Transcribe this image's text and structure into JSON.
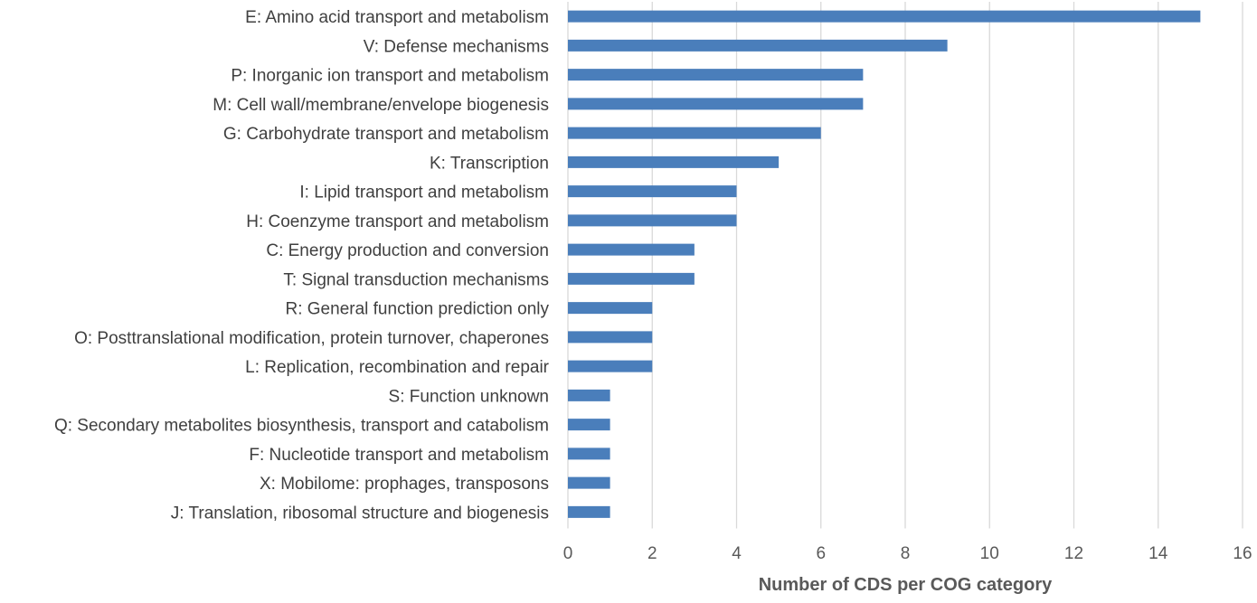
{
  "chart_data": {
    "type": "bar",
    "orientation": "horizontal",
    "title": "",
    "xlabel": "Number of CDS per COG category",
    "ylabel": "",
    "xlim": [
      0,
      16
    ],
    "xticks": [
      0,
      2,
      4,
      6,
      8,
      10,
      12,
      14,
      16
    ],
    "grid": "vertical",
    "legend": "none",
    "bar_color": "#4a7ebb",
    "gridline_color": "#d9d9d9",
    "label_color": "#404040",
    "categories": [
      "E: Amino acid transport and metabolism",
      "V: Defense mechanisms",
      "P: Inorganic ion transport and metabolism",
      "M: Cell wall/membrane/envelope biogenesis",
      "G: Carbohydrate transport and metabolism",
      "K: Transcription",
      "I: Lipid transport and metabolism",
      "H: Coenzyme transport and metabolism",
      "C: Energy production and conversion",
      "T: Signal transduction mechanisms",
      "R: General function prediction only",
      "O: Posttranslational modification, protein turnover, chaperones",
      "L: Replication, recombination and repair",
      "S: Function unknown",
      "Q: Secondary metabolites biosynthesis, transport and catabolism",
      "F: Nucleotide transport and metabolism",
      "X: Mobilome: prophages, transposons",
      "J: Translation, ribosomal structure and biogenesis"
    ],
    "values": [
      15,
      9,
      7,
      7,
      6,
      5,
      4,
      4,
      3,
      3,
      2,
      2,
      2,
      1,
      1,
      1,
      1,
      1
    ]
  }
}
